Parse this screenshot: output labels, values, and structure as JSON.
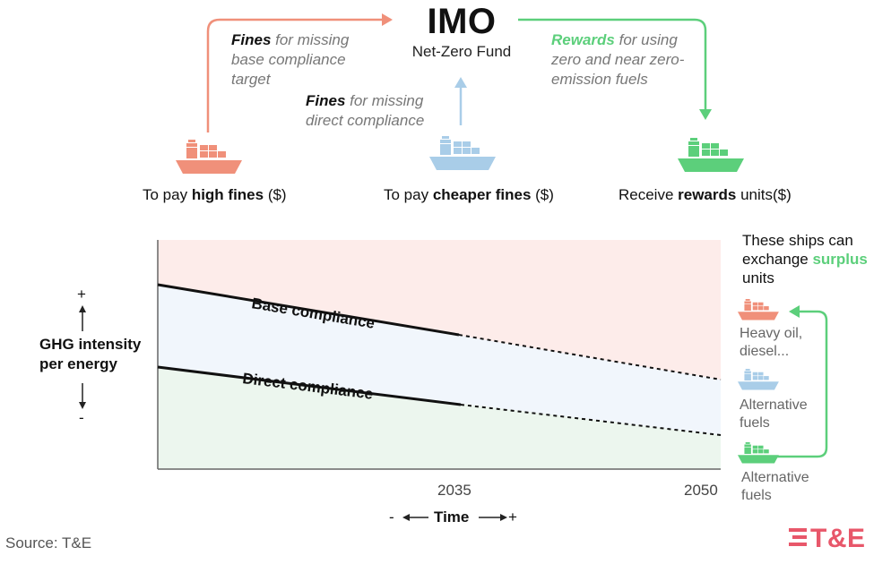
{
  "header": {
    "title": "IMO",
    "subtitle": "Net-Zero Fund"
  },
  "flows": {
    "base_fines": {
      "bold": "Fines",
      "line1_rest": " for missing",
      "line2": "base compliance",
      "line3": "target"
    },
    "direct_fines": {
      "bold": "Fines",
      "line1_rest": " for missing",
      "line2": "direct compliance"
    },
    "rewards": {
      "bold": "Rewards",
      "line1_rest": " for using",
      "line2": "zero and near zero-",
      "line3": "emission fuels"
    }
  },
  "ships": {
    "left": {
      "pre": "To pay ",
      "bold": "high fines",
      "post": " ($)"
    },
    "middle": {
      "pre": "To pay ",
      "bold": "cheaper fines",
      "post": " ($)"
    },
    "right": {
      "pre": "Receive ",
      "bold": "rewards",
      "post": " units($)"
    }
  },
  "chart": {
    "y_axis": {
      "plus": "+",
      "minus": "-",
      "line1": "GHG intensity",
      "line2": "per energy"
    },
    "x_axis": {
      "label": "Time",
      "minus": "- ",
      "plus": "+"
    },
    "ticks": [
      "2035",
      "2050"
    ],
    "lines": {
      "base": "Base compliance",
      "direct": "Direct compliance"
    }
  },
  "side_panel": {
    "line1": "These ships can",
    "line2_pre": "exchange ",
    "line2_bold": "surplus",
    "line3": "units",
    "items": [
      {
        "line1": "Heavy oil,",
        "line2": "diesel..."
      },
      {
        "line1": "Alternative",
        "line2": "fuels"
      },
      {
        "line1": "Alternative",
        "line2": "fuels"
      }
    ]
  },
  "footer": {
    "source": "Source: T&E",
    "logo": "T&E"
  },
  "colors": {
    "red": "#f0907a",
    "blue": "#a9cde8",
    "green": "#5ccf7b",
    "red_zone": "#fdecea",
    "blue_zone": "#f1f6fc",
    "green_zone": "#ecf6ee",
    "logo": "#e8576a"
  }
}
